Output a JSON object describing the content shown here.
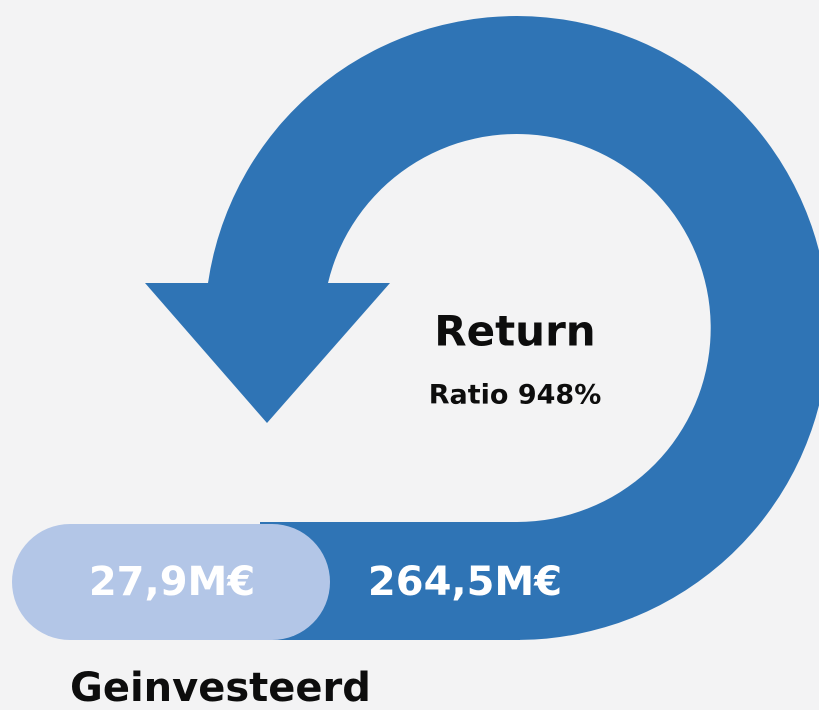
{
  "return": {
    "title": "Return",
    "ratio": "Ratio 948%",
    "amount": "264,5M€"
  },
  "invested": {
    "amount": "27,9M€",
    "label": "Geinvesteerd"
  }
}
